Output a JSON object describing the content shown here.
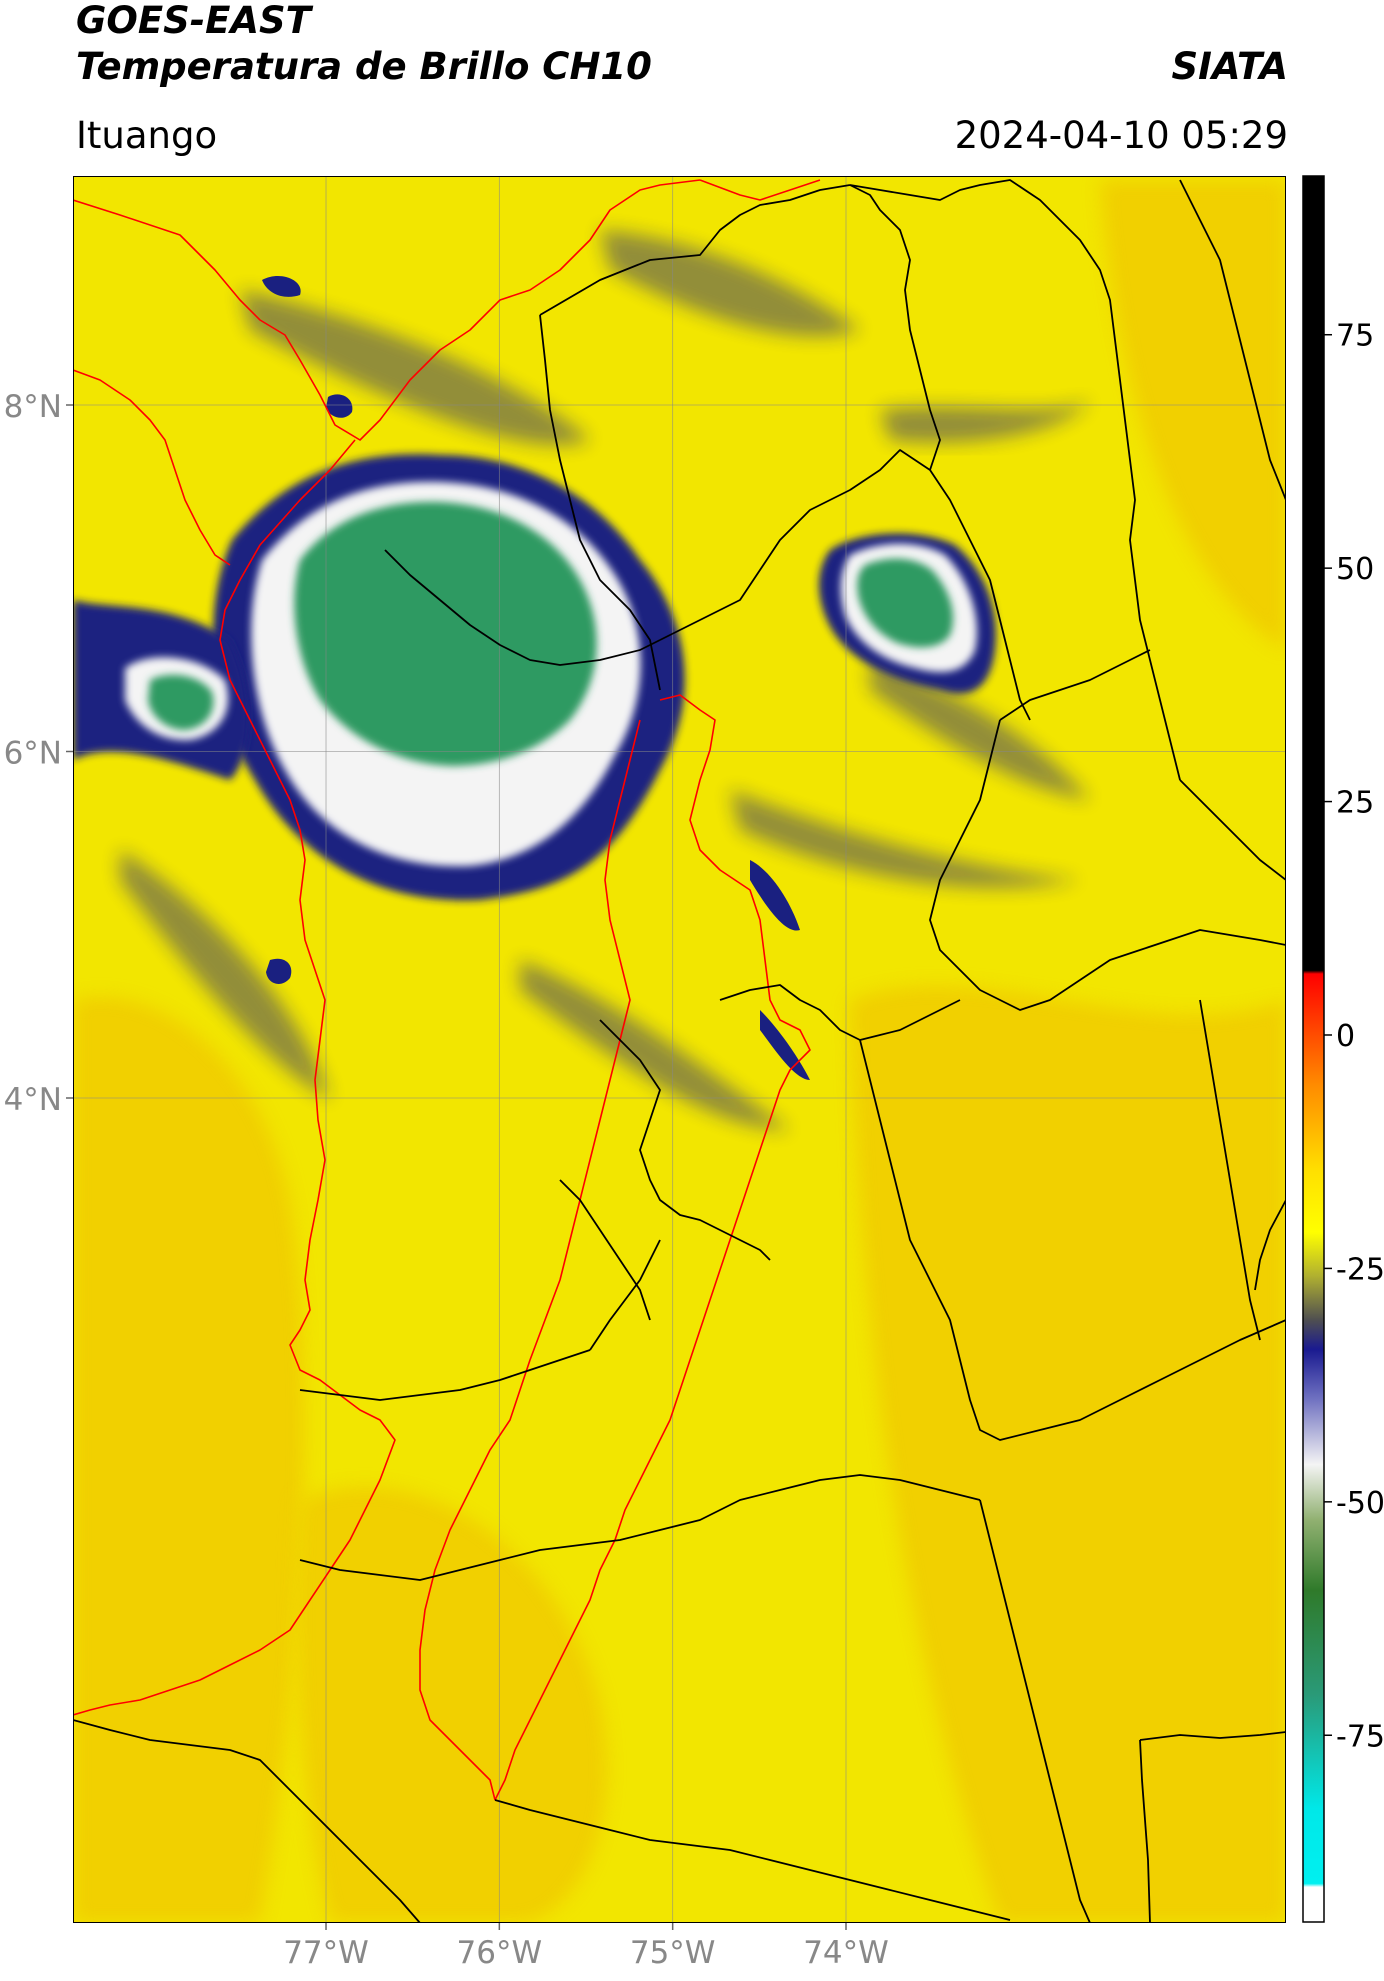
{
  "header": {
    "title_line1": "GOES-EAST",
    "title_line2": "Temperatura de Brillo CH10",
    "brand": "SIATA",
    "region": "Ituango",
    "datetime": "2024-04-10 05:29"
  },
  "map": {
    "lat_labels": [
      {
        "value": 8,
        "label": "8°N"
      },
      {
        "value": 6,
        "label": "6°N"
      },
      {
        "value": 4,
        "label": "4°N"
      }
    ],
    "lon_labels": [
      {
        "value": -77,
        "label": "77°W"
      },
      {
        "value": -76,
        "label": "76°W"
      },
      {
        "value": -75,
        "label": "75°W"
      },
      {
        "value": -74,
        "label": "74°W"
      }
    ],
    "colors": {
      "land_background": "#f2e600",
      "warm_fill": "#f0c800",
      "cloud_edge": "#1a2080",
      "cloud_white": "#f4f4f4",
      "cloud_core": "#2e9a62",
      "border_red": "#ff0000",
      "border_black": "#000000",
      "grid": "#888888"
    }
  },
  "colorbar": {
    "ticks": [
      {
        "value": 75,
        "label": "75"
      },
      {
        "value": 50,
        "label": "50"
      },
      {
        "value": 25,
        "label": "25"
      },
      {
        "value": 0,
        "label": "0"
      },
      {
        "value": -25,
        "label": "-25"
      },
      {
        "value": -50,
        "label": "-50"
      },
      {
        "value": -75,
        "label": "-75"
      }
    ],
    "min": -95,
    "max": 92
  }
}
